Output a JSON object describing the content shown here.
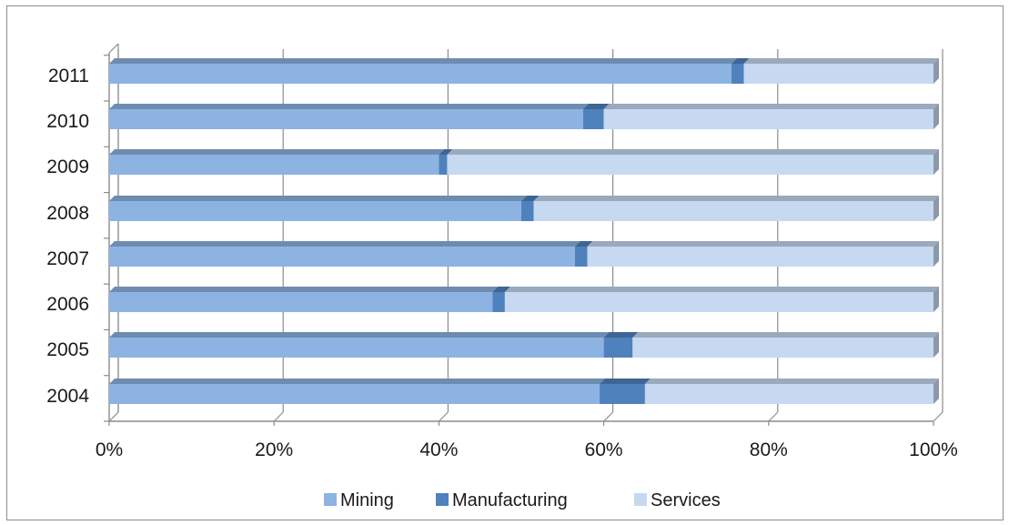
{
  "chart_data": {
    "type": "bar",
    "orientation": "horizontal",
    "stacked": "percent",
    "categories": [
      "2004",
      "2005",
      "2006",
      "2007",
      "2008",
      "2009",
      "2010",
      "2011"
    ],
    "series": [
      {
        "name": "Mining",
        "color": "#8db3e2",
        "values": [
          59.5,
          60,
          46.5,
          56.5,
          50,
          40,
          57.5,
          75.5
        ]
      },
      {
        "name": "Manufacturing",
        "color": "#4f81bd",
        "values": [
          5.5,
          3.5,
          1.5,
          1.5,
          1.5,
          1,
          2.5,
          1.5
        ]
      },
      {
        "name": "Services",
        "color": "#c6d9f1",
        "values": [
          35,
          36.5,
          52,
          42,
          48.5,
          59,
          40,
          23
        ]
      }
    ],
    "xticks": [
      "0%",
      "20%",
      "40%",
      "60%",
      "80%",
      "100%"
    ],
    "xlim": [
      0,
      100
    ],
    "grid": true,
    "legend_position": "bottom",
    "title": "",
    "xlabel": "",
    "ylabel": ""
  }
}
